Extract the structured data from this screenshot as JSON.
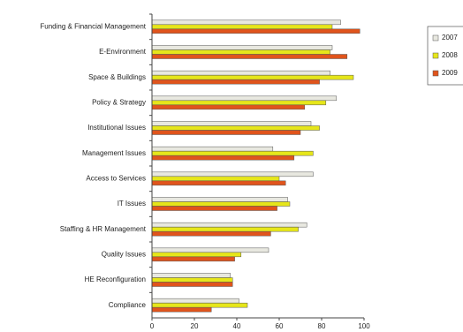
{
  "chart_data": {
    "type": "bar",
    "orientation": "horizontal",
    "categories": [
      "Funding & Financial Management",
      "E-Environment",
      "Space & Buildings",
      "Policy & Strategy",
      "Institutional Issues",
      "Management Issues",
      "Access to Services",
      "IT Issues",
      "Staffing & HR Management",
      "Quality Issues",
      "HE Reconfiguration",
      "Compliance"
    ],
    "series": [
      {
        "name": "2007",
        "color": "#e8e8e0",
        "values": [
          89,
          85,
          84,
          87,
          75,
          57,
          76,
          64,
          73,
          55,
          37,
          41
        ]
      },
      {
        "name": "2008",
        "color": "#e6e61a",
        "values": [
          85,
          84,
          95,
          82,
          79,
          76,
          60,
          65,
          69,
          42,
          38,
          45
        ]
      },
      {
        "name": "2009",
        "color": "#e0541c",
        "values": [
          98,
          92,
          79,
          72,
          70,
          67,
          63,
          59,
          56,
          39,
          38,
          28
        ]
      }
    ],
    "xlim": [
      0,
      100
    ],
    "xticks": [
      0,
      20,
      40,
      60,
      80,
      100
    ],
    "legend": "right"
  }
}
